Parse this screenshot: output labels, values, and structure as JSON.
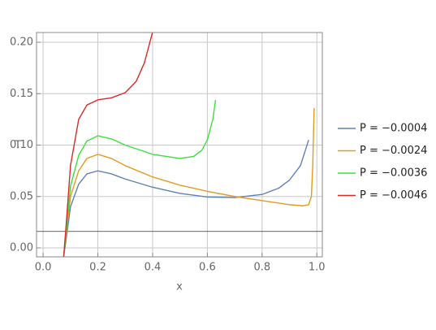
{
  "chart_data": {
    "type": "line",
    "xlabel": "x",
    "ylabel": "T",
    "xlim": [
      -0.024,
      1.02
    ],
    "ylim": [
      -0.0087,
      0.2095
    ],
    "xticks": [
      {
        "value": 0,
        "label": "0.0"
      },
      {
        "value": 0.2,
        "label": "0.2"
      },
      {
        "value": 0.4,
        "label": "0.4"
      },
      {
        "value": 0.6,
        "label": "0.6"
      },
      {
        "value": 0.8,
        "label": "0.8"
      },
      {
        "value": 1,
        "label": "1.0"
      }
    ],
    "yticks": [
      {
        "value": 0,
        "label": "0.00"
      },
      {
        "value": 0.05,
        "label": "0.05"
      },
      {
        "value": 0.1,
        "label": "0.10"
      },
      {
        "value": 0.15,
        "label": "0.15"
      },
      {
        "value": 0.2,
        "label": "0.20"
      }
    ],
    "grid": true,
    "hline": 0.016,
    "legend": "right",
    "series": [
      {
        "name": "P = −0.0004",
        "color": "#5e81b5",
        "x": [
          0.075,
          0.085,
          0.1,
          0.13,
          0.16,
          0.2,
          0.25,
          0.3,
          0.4,
          0.5,
          0.6,
          0.7,
          0.8,
          0.86,
          0.9,
          0.94,
          0.97
        ],
        "values": [
          -0.009,
          0.01,
          0.04,
          0.062,
          0.072,
          0.075,
          0.072,
          0.067,
          0.059,
          0.053,
          0.0495,
          0.049,
          0.052,
          0.058,
          0.066,
          0.08,
          0.105
        ]
      },
      {
        "name": "P = −0.0024",
        "color": "#e19c24",
        "x": [
          0.075,
          0.085,
          0.1,
          0.13,
          0.16,
          0.2,
          0.25,
          0.3,
          0.4,
          0.5,
          0.6,
          0.7,
          0.8,
          0.9,
          0.95,
          0.97,
          0.98,
          0.985,
          0.99
        ],
        "values": [
          -0.009,
          0.015,
          0.05,
          0.075,
          0.087,
          0.091,
          0.087,
          0.08,
          0.069,
          0.061,
          0.055,
          0.05,
          0.046,
          0.042,
          0.041,
          0.042,
          0.05,
          0.08,
          0.136
        ]
      },
      {
        "name": "P = −0.0036",
        "color": "#3be03b",
        "x": [
          0.075,
          0.085,
          0.1,
          0.13,
          0.16,
          0.2,
          0.25,
          0.3,
          0.4,
          0.5,
          0.55,
          0.58,
          0.6,
          0.62,
          0.63
        ],
        "values": [
          -0.009,
          0.018,
          0.06,
          0.09,
          0.104,
          0.109,
          0.106,
          0.1,
          0.091,
          0.087,
          0.089,
          0.095,
          0.105,
          0.125,
          0.144
        ]
      },
      {
        "name": "P = −0.0046",
        "color": "#d92a2a",
        "x": [
          0.075,
          0.085,
          0.1,
          0.13,
          0.16,
          0.2,
          0.25,
          0.3,
          0.34,
          0.37,
          0.39,
          0.4
        ],
        "values": [
          -0.009,
          0.025,
          0.08,
          0.125,
          0.139,
          0.144,
          0.146,
          0.151,
          0.162,
          0.18,
          0.2,
          0.21
        ]
      }
    ]
  }
}
